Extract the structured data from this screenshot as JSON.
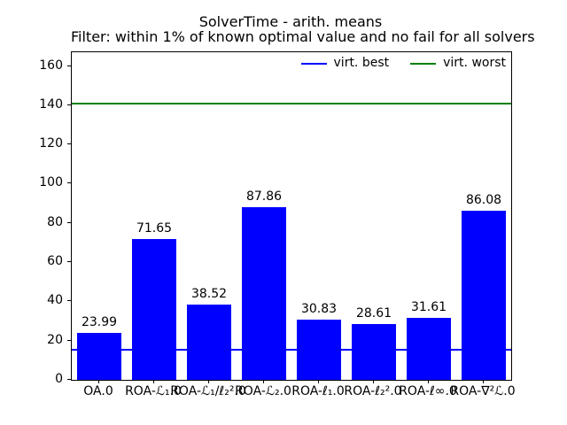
{
  "title": {
    "line1": "SolverTime - arith. means",
    "line2": "Filter: within 1% of known optimal value and no fail for all solvers"
  },
  "legend": [
    {
      "label": "virt. best",
      "color": "#0000ff"
    },
    {
      "label": "virt. worst",
      "color": "#008000"
    }
  ],
  "chart_data": {
    "type": "bar",
    "title": "SolverTime - arith. means",
    "subtitle": "Filter: within 1% of known optimal value and no fail for all solvers",
    "categories": [
      "OA.0",
      "ROA-ℒ₁.0",
      "ROA-ℒ₁/ℓ₂².0",
      "ROA-ℒ₂.0",
      "ROA-ℓ₁.0",
      "ROA-ℓ₂².0",
      "ROA-ℓ∞.0",
      "ROA-∇²ℒ.0"
    ],
    "values": [
      23.99,
      71.65,
      38.52,
      87.86,
      30.83,
      28.61,
      31.61,
      86.08
    ],
    "value_labels": [
      "23.99",
      "71.65",
      "38.52",
      "87.86",
      "30.83",
      "28.61",
      "31.61",
      "86.08"
    ],
    "bar_color": "#0000ff",
    "hlines": [
      {
        "name": "virt. best",
        "value": 15.2,
        "color": "#0000ff"
      },
      {
        "name": "virt. worst",
        "value": 141.0,
        "color": "#008000"
      }
    ],
    "yticks": [
      0,
      20,
      40,
      60,
      80,
      100,
      120,
      140,
      160
    ],
    "ylim": [
      0,
      167
    ],
    "xlabel": "",
    "ylabel": "",
    "grid": false,
    "legend_position": "upper right, inside axes, horizontal, no frame",
    "axis_color": "#000000",
    "background": "#ffffff"
  }
}
